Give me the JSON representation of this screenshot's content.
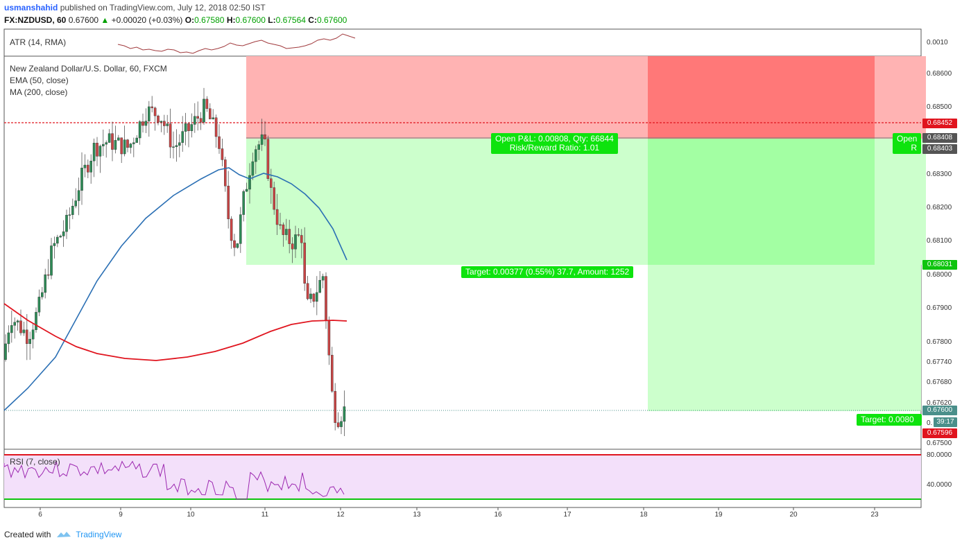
{
  "header": {
    "user": "usmanshahid",
    "published": "published on TradingView.com, July 12, 2018 02:50 IST",
    "symbol": "FX:NZDUSD, 60",
    "last": "0.67600",
    "change": "+0.00020 (+0.03%)",
    "o_label": "O:",
    "o": "0.67580",
    "h_label": "H:",
    "h": "0.67600",
    "l_label": "L:",
    "l": "0.67564",
    "c_label": "C:",
    "c": "0.67600"
  },
  "panes": {
    "atr": {
      "label": "ATR (14, RMA)",
      "tick": "0.0010"
    },
    "price": {
      "title": "New Zealand Dollar/U.S. Dollar, 60, FXCM",
      "ema": "EMA (50, close)",
      "ma": "MA (200, close)"
    },
    "rsi": {
      "label": "RSI (7, close)",
      "ticks": [
        "80.0000",
        "40.0000"
      ]
    }
  },
  "positions": {
    "pnl_line1": "Open P&L: 0.00808, Qty: 66844",
    "pnl_line2": "Risk/Reward Ratio: 1.01",
    "target1": "Target: 0.00377 (0.55%) 37.7, Amount: 1252",
    "open2": "Open",
    "open2_r": "R",
    "target2": "Target: 0.0080"
  },
  "price_axis": {
    "ticks": [
      "0.68600",
      "0.68500",
      "0.68300",
      "0.68200",
      "0.68100",
      "0.68000",
      "0.67900",
      "0.67800",
      "0.67740",
      "0.67680",
      "0.67620",
      "0.67500"
    ],
    "tags": [
      {
        "text": "0.68452",
        "color": "#e0141e"
      },
      {
        "text": "0.68408",
        "color": "#555555"
      },
      {
        "text": "0.68403",
        "color": "#555555"
      },
      {
        "text": "0.68031",
        "color": "#0ec40e"
      },
      {
        "text": "0.67600",
        "color": "#4a8f8a"
      },
      {
        "text": "39:17",
        "color": "#4a8f8a"
      },
      {
        "text": "0.67596",
        "color": "#e0141e"
      }
    ],
    "partial": "0."
  },
  "time_axis": [
    "6",
    "9",
    "10",
    "11",
    "12",
    "13",
    "16",
    "17",
    "18",
    "19",
    "20",
    "23"
  ],
  "footer": {
    "created": "Created with",
    "brand": "TradingView"
  },
  "colors": {
    "up": "#26a69a",
    "down": "#ef5350",
    "ema": "#2a6fb4",
    "ma": "#e0141e",
    "rsi": "#9c27b0",
    "atr": "#a0393c",
    "green": "#0ee30e"
  },
  "chart_data": {
    "type": "candlestick",
    "title": "New Zealand Dollar/U.S. Dollar, 60, FXCM",
    "x_labels": [
      "6",
      "9",
      "10",
      "11",
      "12",
      "13",
      "16",
      "17",
      "18",
      "19",
      "20",
      "23"
    ],
    "ylim": [
      0.675,
      0.6866
    ],
    "last_price": 0.676,
    "levels": {
      "stop": 0.68452,
      "entry": 0.68408,
      "entry2": 0.68403,
      "target": 0.68031
    },
    "ema_close_approx": [
      0.6762,
      0.6775,
      0.6789,
      0.6805,
      0.6818,
      0.6826,
      0.6831,
      0.6829,
      0.683,
      0.682,
      0.681,
      0.6804
    ],
    "ma200_approx": [
      0.6792,
      0.678,
      0.6775,
      0.6774,
      0.6776,
      0.678,
      0.6786,
      0.679,
      0.6795,
      0.6797,
      0.6796
    ],
    "rsi_levels": [
      80,
      40
    ]
  }
}
